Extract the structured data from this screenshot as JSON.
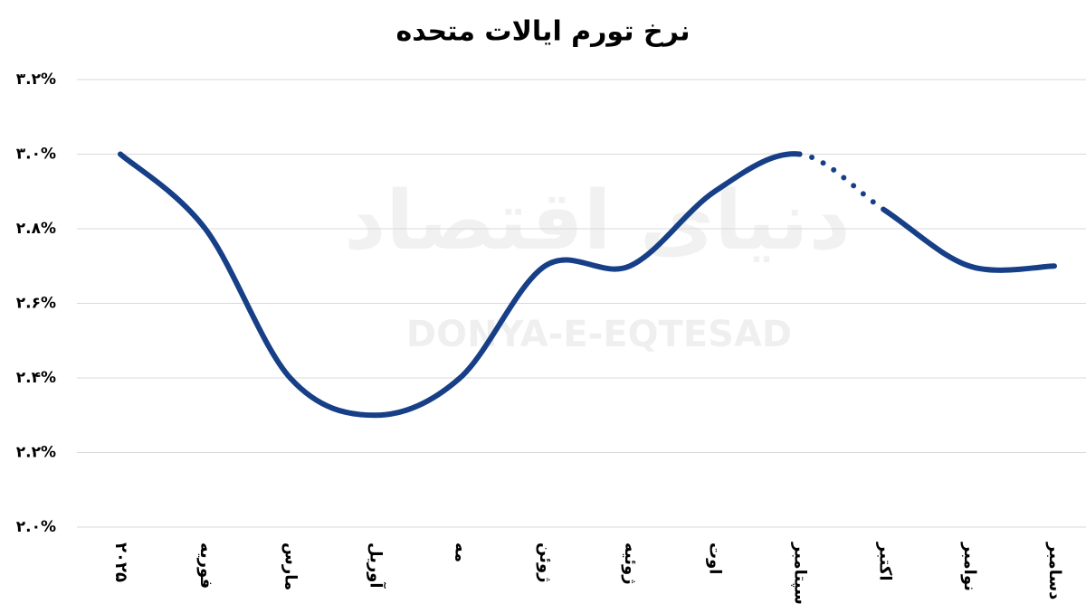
{
  "chart_data": {
    "type": "line",
    "title": "نرخ تورم ایالات متحده",
    "watermark": [
      "دنیای اقتصاد",
      "DONYA-E-EQTESAD"
    ],
    "categories": [
      "۲۰۲۵",
      "فوریه",
      "مارس",
      "آوریل",
      "مه",
      "ژوئن",
      "ژوئیه",
      "اوت",
      "سپتامبر",
      "اکتبر",
      "نوامبر",
      "دسامبر"
    ],
    "series": [
      {
        "name": "نرخ تورم",
        "color": "#163f87",
        "values": [
          3.0,
          2.8,
          2.4,
          2.3,
          2.4,
          2.7,
          2.7,
          2.9,
          3.0,
          2.85,
          2.7,
          2.7
        ]
      }
    ],
    "dotted_segments": [
      [
        8,
        9
      ]
    ],
    "ylim": [
      2.0,
      3.2
    ],
    "yticks": [
      {
        "value": 2.0,
        "label": "۲.۰%"
      },
      {
        "value": 2.2,
        "label": "۲.۲%"
      },
      {
        "value": 2.4,
        "label": "۲.۴%"
      },
      {
        "value": 2.6,
        "label": "۲.۶%"
      },
      {
        "value": 2.8,
        "label": "۲.۸%"
      },
      {
        "value": 3.0,
        "label": "۳.۰%"
      },
      {
        "value": 3.2,
        "label": "۳.۲%"
      }
    ],
    "grid": true
  }
}
